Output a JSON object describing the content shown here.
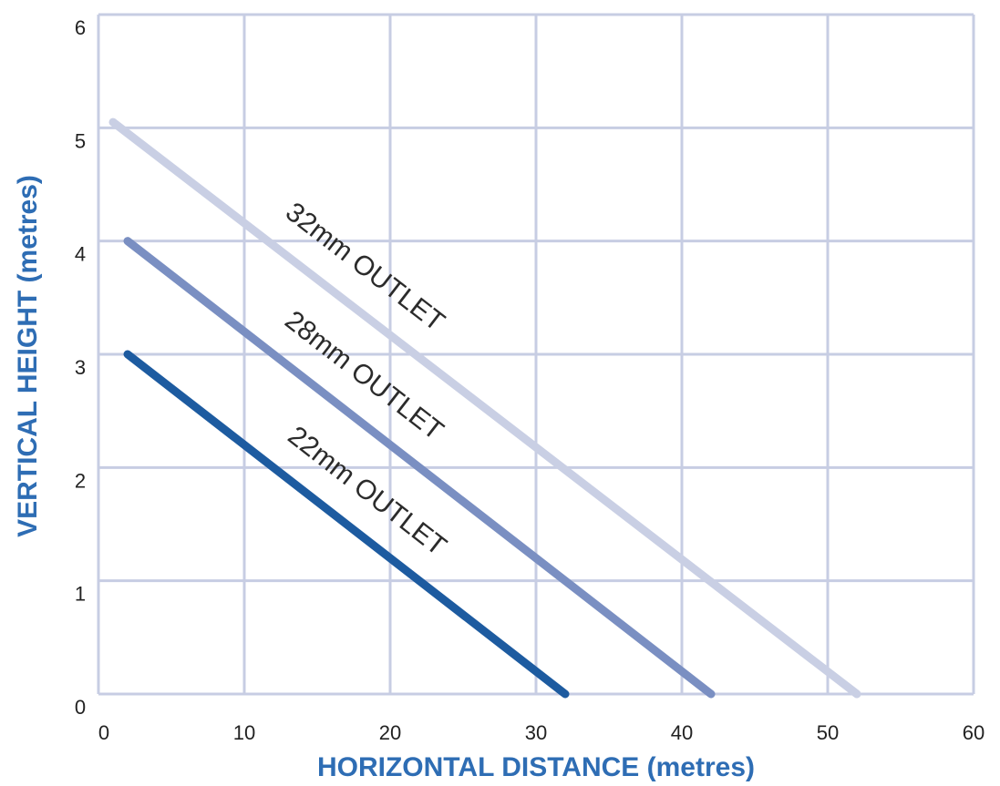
{
  "chart_data": {
    "type": "line",
    "xlabel": "HORIZONTAL DISTANCE (metres)",
    "ylabel": "VERTICAL HEIGHT (metres)",
    "xlim": [
      0,
      60
    ],
    "ylim": [
      0,
      6
    ],
    "xticks": [
      0,
      10,
      20,
      30,
      40,
      50,
      60
    ],
    "yticks": [
      0,
      1,
      2,
      3,
      4,
      5,
      6
    ],
    "grid": true,
    "series": [
      {
        "name": "32mm OUTLET",
        "x": [
          1,
          52
        ],
        "y": [
          5.05,
          0
        ],
        "color": "#c9cfe4"
      },
      {
        "name": "28mm OUTLET",
        "x": [
          2,
          42
        ],
        "y": [
          4.0,
          0
        ],
        "color": "#7a8fc2"
      },
      {
        "name": "22mm OUTLET",
        "x": [
          2,
          32
        ],
        "y": [
          3.0,
          0
        ],
        "color": "#1d5ba0"
      }
    ],
    "colors": {
      "grid": "#c7cde3",
      "axis_title": "#2e6db4",
      "tick_text": "#222222"
    }
  }
}
